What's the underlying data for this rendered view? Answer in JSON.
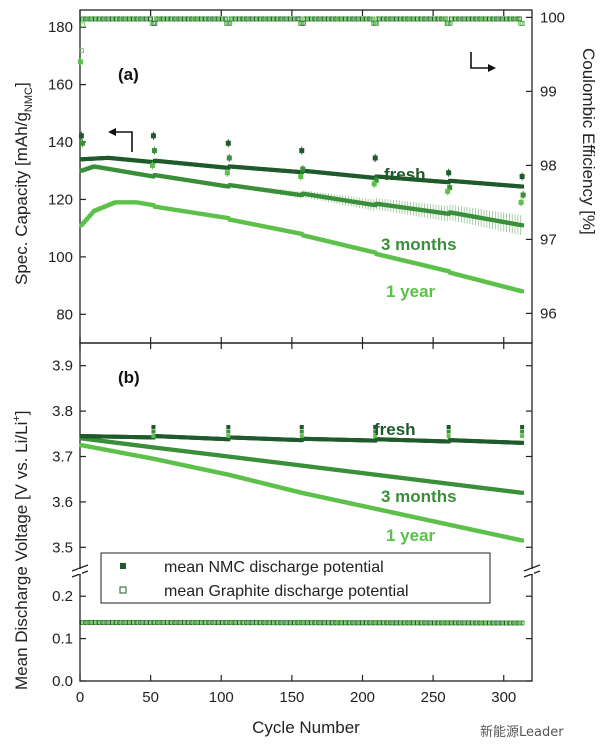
{
  "colors": {
    "fresh": "#1f5a2a",
    "three_months": "#3a8f3a",
    "one_year": "#5cc04a",
    "axis": "#222222"
  },
  "xlabel": "Cycle Number",
  "watermark": "新能源Leader",
  "chart_data": [
    {
      "type": "scatter",
      "panel_label": "(a)",
      "ylabel_left": "Spec. Capacity [mAh/g",
      "ylabel_left_sub": "NMC",
      "ylabel_left_end": "]",
      "ylabel_right": "Coulombic Efficiency [%]",
      "xlim": [
        0,
        320
      ],
      "x_ticks": [
        "0",
        "50",
        "100",
        "150",
        "200",
        "250",
        "300"
      ],
      "ylim_left": [
        70,
        186
      ],
      "y_ticks_left": [
        "80",
        "100",
        "120",
        "140",
        "160",
        "180"
      ],
      "ylim_right": [
        95.6,
        100.1
      ],
      "y_ticks_right": [
        "96",
        "97",
        "98",
        "99",
        "100"
      ],
      "series": [
        {
          "name": "fresh",
          "key": "fresh",
          "axis": "left",
          "x": [
            1,
            20,
            52,
            53,
            105,
            106,
            157,
            158,
            209,
            210,
            261,
            262,
            313
          ],
          "y": [
            134,
            134.5,
            133,
            133.5,
            131,
            131.5,
            129.5,
            130,
            127.5,
            128,
            126,
            126.5,
            124.5
          ]
        },
        {
          "name": "3 months",
          "key": "three_months",
          "axis": "left",
          "x": [
            1,
            10,
            52,
            53,
            105,
            106,
            157,
            158,
            209,
            210,
            261,
            262,
            313
          ],
          "y": [
            130,
            131.5,
            128,
            128.5,
            124.5,
            125,
            121.5,
            122,
            118,
            118.5,
            115,
            115.5,
            111
          ]
        },
        {
          "name": "1 year",
          "key": "one_year",
          "axis": "left",
          "x": [
            1,
            10,
            25,
            40,
            52,
            53,
            105,
            106,
            157,
            158,
            209,
            210,
            261,
            262,
            313
          ],
          "y": [
            111,
            116,
            119,
            119,
            118,
            117.5,
            113.5,
            113,
            108,
            107.5,
            101.5,
            101,
            95,
            94.5,
            88
          ]
        },
        {
          "name": "fresh CE",
          "key": "fresh",
          "axis": "right",
          "x": [
            1,
            52,
            105,
            157,
            209,
            261,
            313
          ],
          "y": [
            98.4,
            98.4,
            98.3,
            98.2,
            98.1,
            97.9,
            97.85
          ]
        },
        {
          "name": "3 months CE",
          "key": "three_months",
          "axis": "right",
          "x": [
            1,
            52,
            105,
            157,
            209,
            261,
            313
          ],
          "y": [
            98.3,
            98.2,
            98.1,
            97.95,
            97.8,
            97.7,
            97.6
          ]
        },
        {
          "name": "1 year CE",
          "key": "one_year",
          "axis": "right",
          "x": [
            1,
            52,
            105,
            157,
            209,
            261,
            313
          ],
          "y": [
            99.4,
            98.0,
            97.9,
            97.85,
            97.75,
            97.65,
            97.5
          ]
        }
      ],
      "ce_baseline_right": 99.98,
      "annotations": [
        "fresh",
        "3 months",
        "1 year"
      ]
    },
    {
      "type": "scatter",
      "panel_label": "(b)",
      "ylabel_left": "Mean Discharge Voltage [V vs. Li/Li",
      "ylabel_left_sup": "+",
      "ylabel_left_end": "]",
      "xlim": [
        0,
        320
      ],
      "x_ticks": [
        "0",
        "50",
        "100",
        "150",
        "200",
        "250",
        "300"
      ],
      "ylim_upper": [
        3.45,
        3.95
      ],
      "y_ticks_upper": [
        "3.5",
        "3.6",
        "3.7",
        "3.8",
        "3.9"
      ],
      "ylim_lower": [
        0,
        0.25
      ],
      "y_ticks_lower": [
        "0.0",
        "0.1",
        "0.2"
      ],
      "series": [
        {
          "name": "fresh",
          "key": "fresh",
          "x": [
            1,
            52,
            53,
            105,
            106,
            157,
            158,
            209,
            210,
            261,
            262,
            313
          ],
          "y": [
            3.745,
            3.742,
            3.745,
            3.738,
            3.742,
            3.736,
            3.739,
            3.735,
            3.738,
            3.733,
            3.736,
            3.73
          ]
        },
        {
          "name": "3 months",
          "key": "three_months",
          "x": [
            1,
            52,
            105,
            157,
            209,
            261,
            313
          ],
          "y": [
            3.74,
            3.72,
            3.7,
            3.68,
            3.66,
            3.64,
            3.62
          ]
        },
        {
          "name": "1 year",
          "key": "one_year",
          "x": [
            1,
            52,
            105,
            157,
            209,
            261,
            313
          ],
          "y": [
            3.725,
            3.695,
            3.66,
            3.62,
            3.585,
            3.55,
            3.515
          ]
        }
      ],
      "graphite_potential": {
        "x": [
          1,
          313
        ],
        "y": [
          0.138,
          0.137
        ]
      },
      "legend": [
        "mean NMC discharge potential",
        "mean Graphite discharge potential"
      ],
      "annotations": [
        "fresh",
        "3 months",
        "1 year"
      ]
    }
  ]
}
